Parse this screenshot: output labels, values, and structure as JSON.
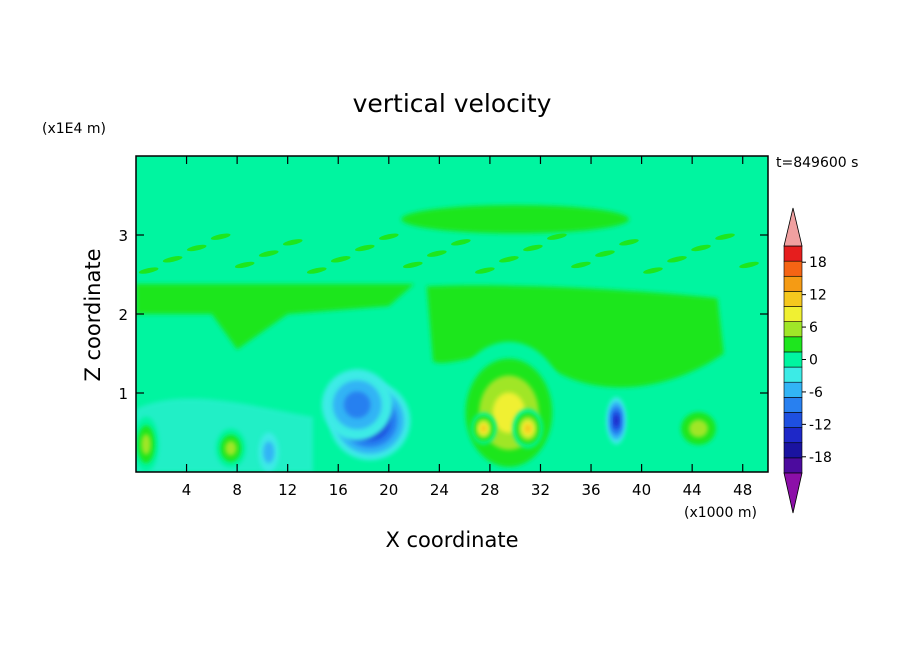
{
  "chart_data": {
    "type": "heatmap",
    "title": "vertical velocity",
    "time_label": "t=849600 s",
    "xlabel": "X coordinate",
    "ylabel": "Z coordinate",
    "x_unit": "(x1000 m)",
    "y_unit": "(x1E4 m)",
    "xlim": [
      0,
      50
    ],
    "ylim": [
      0,
      4
    ],
    "x_ticks": [
      4,
      8,
      12,
      16,
      20,
      24,
      28,
      32,
      36,
      40,
      44,
      48
    ],
    "y_ticks": [
      1,
      2,
      3
    ],
    "colorbar": {
      "levels": [
        -21,
        -18,
        -15,
        -12,
        -9,
        -6,
        -3,
        0,
        3,
        6,
        9,
        12,
        15,
        18,
        21
      ],
      "colors": [
        "#4c0b9e",
        "#1a13a0",
        "#1e28c8",
        "#1e50e0",
        "#2880f0",
        "#32b4f5",
        "#3cebe6",
        "#00f5a0",
        "#1ee61e",
        "#a0e628",
        "#f0f032",
        "#f5c81e",
        "#f59b14",
        "#f56414",
        "#e61e1e"
      ],
      "under_color": "#8c0fa8",
      "over_color": "#f0a0a0",
      "tick_labels": [
        "-18",
        "-12",
        "-6",
        "0",
        "6",
        "12",
        "18"
      ],
      "tick_values": [
        -18,
        -12,
        -6,
        0,
        6,
        12,
        18
      ]
    },
    "features": [
      {
        "x": 18.5,
        "z": 0.65,
        "value": -15,
        "rx": 3.2,
        "rz": 0.5
      },
      {
        "x": 17.5,
        "z": 0.85,
        "value": -6,
        "rx": 2.8,
        "rz": 0.45
      },
      {
        "x": 29.5,
        "z": 0.75,
        "value": 10,
        "rx": 4.5,
        "rz": 0.9
      },
      {
        "x": 31.0,
        "z": 0.55,
        "value": 14,
        "rx": 1.2,
        "rz": 0.25
      },
      {
        "x": 27.5,
        "z": 0.55,
        "value": 12,
        "rx": 1.0,
        "rz": 0.2
      },
      {
        "x": 38.0,
        "z": 0.65,
        "value": -12,
        "rx": 0.8,
        "rz": 0.3
      },
      {
        "x": 7.5,
        "z": 0.3,
        "value": 8,
        "rx": 1.2,
        "rz": 0.25
      },
      {
        "x": 10.5,
        "z": 0.25,
        "value": -5,
        "rx": 0.8,
        "rz": 0.25
      },
      {
        "x": 44.5,
        "z": 0.55,
        "value": 7,
        "rx": 2.0,
        "rz": 0.3
      },
      {
        "x": 0.8,
        "z": 0.35,
        "value": 6,
        "rx": 1.0,
        "rz": 0.35
      }
    ]
  }
}
